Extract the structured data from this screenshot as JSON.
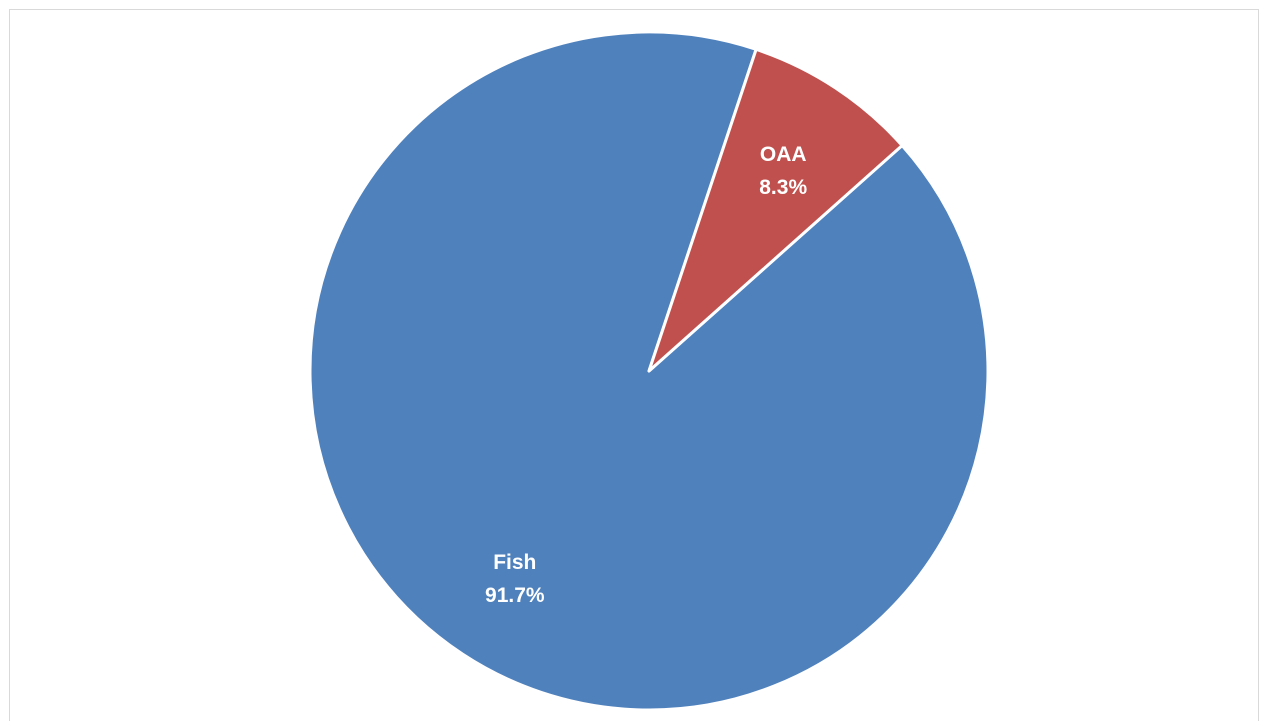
{
  "chart_data": {
    "type": "pie",
    "title": "",
    "slices": [
      {
        "label": "Fish",
        "value": 91.7,
        "display": "91.7%",
        "color": "#4f81bd"
      },
      {
        "label": "OAA",
        "value": 8.3,
        "display": "8.3%",
        "color": "#c0504d"
      }
    ],
    "legend": "none",
    "slice_border_color": "#ffffff"
  }
}
